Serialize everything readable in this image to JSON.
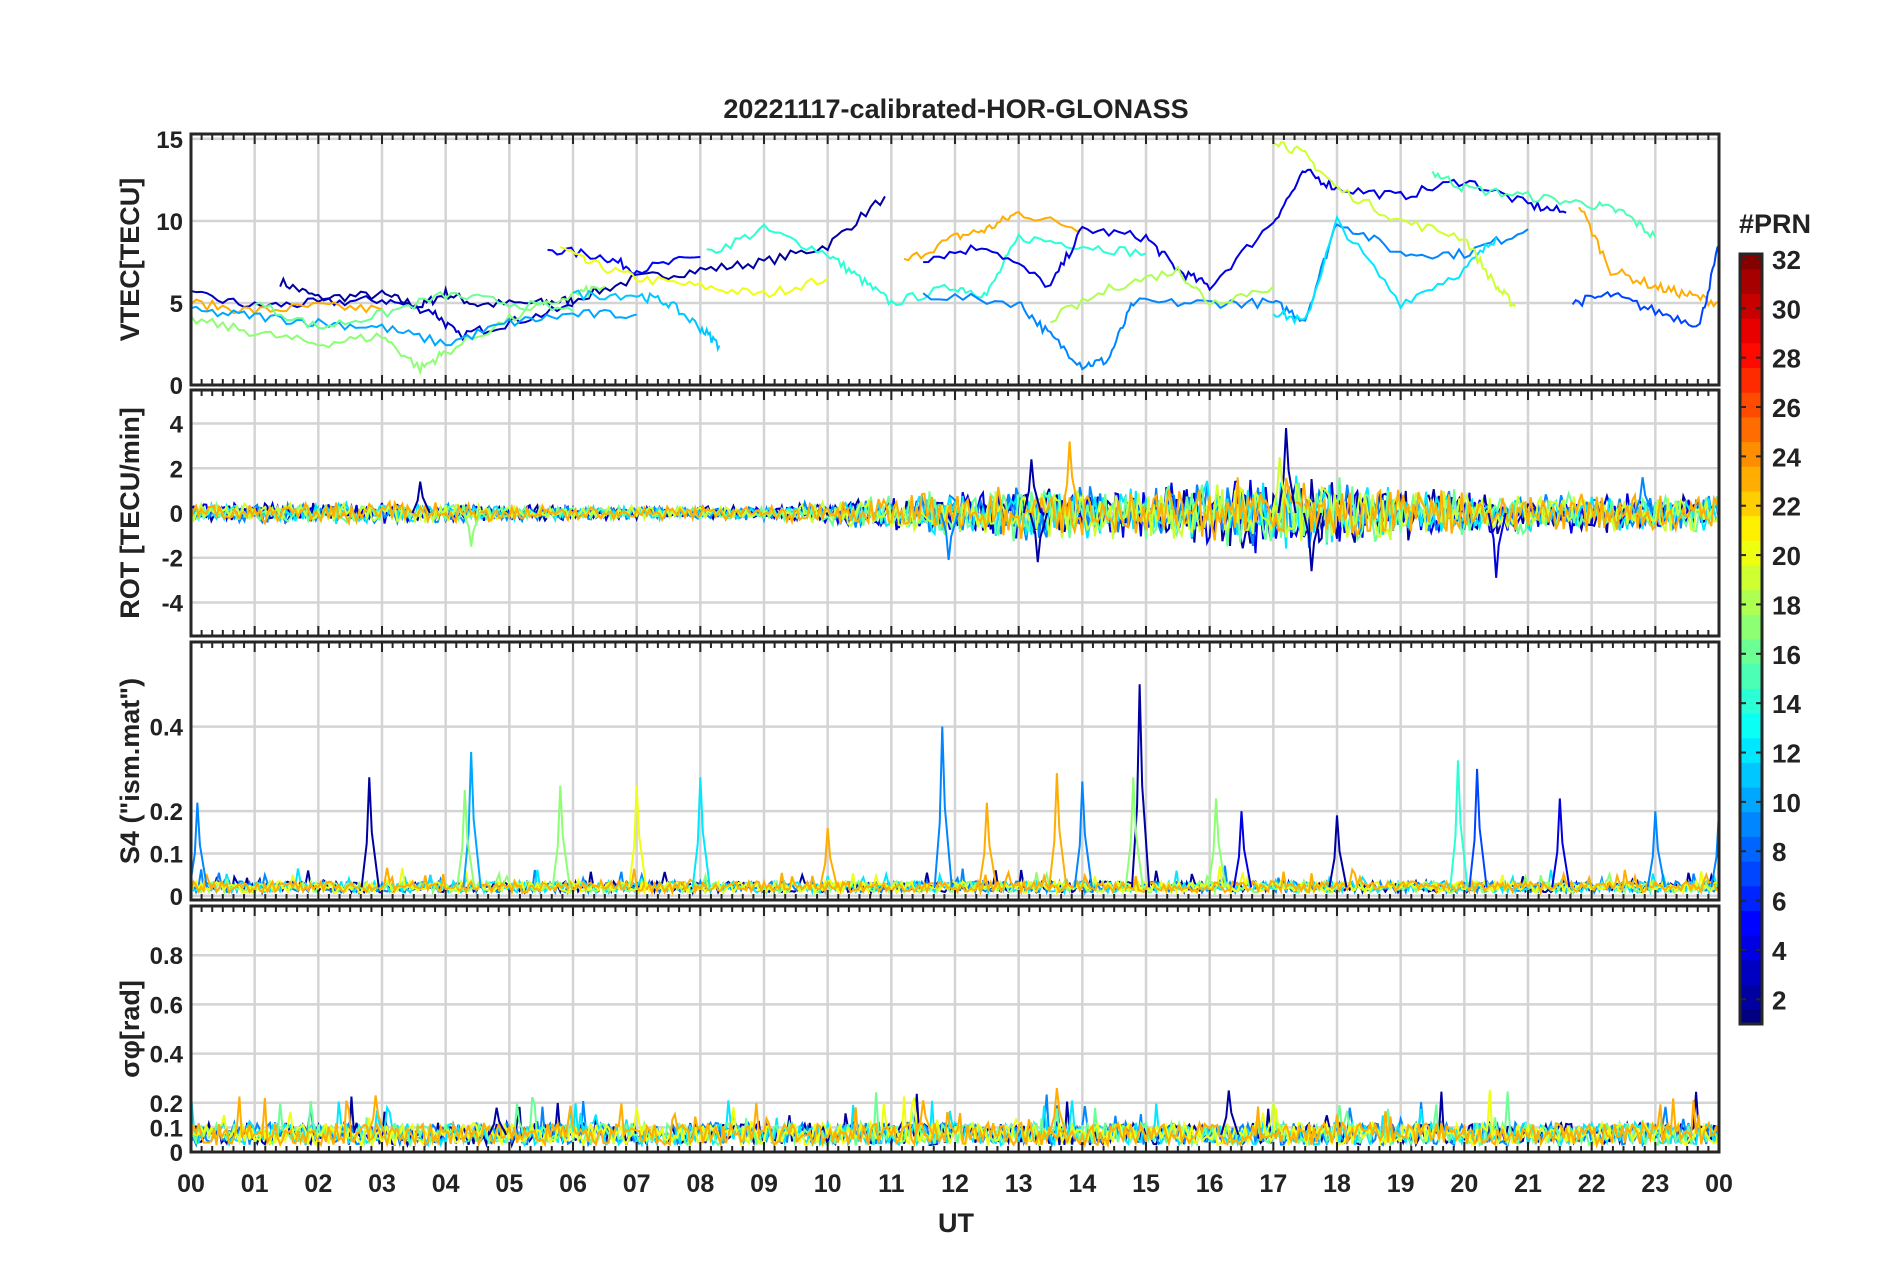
{
  "chart_data": {
    "type": "line",
    "title": "20221117-calibrated-HOR-GLONASS",
    "xlabel": "UT",
    "xlim": [
      0,
      24
    ],
    "xticks": [
      "00",
      "01",
      "02",
      "03",
      "04",
      "05",
      "06",
      "07",
      "08",
      "09",
      "10",
      "11",
      "12",
      "13",
      "14",
      "15",
      "16",
      "17",
      "18",
      "19",
      "20",
      "21",
      "22",
      "23",
      "00"
    ],
    "colorbar": {
      "label": "#PRN",
      "range": [
        1,
        32.2
      ],
      "ticks": [
        2,
        4,
        6,
        8,
        10,
        12,
        14,
        16,
        18,
        20,
        22,
        24,
        26,
        28,
        30,
        32
      ],
      "colormap": "jet"
    },
    "panels": [
      {
        "ylabel": "VTEC[TECU]",
        "ylim": [
          0,
          15.3
        ],
        "yticks": [
          0,
          5,
          10,
          15
        ],
        "yticklabels": [
          "0",
          "5",
          "10",
          "15"
        ],
        "series": [
          {
            "prn": 2,
            "points": [
              [
                1.4,
                6.3
              ],
              [
                2,
                5.3
              ],
              [
                3,
                5.5
              ],
              [
                3.6,
                4.8
              ],
              [
                4,
                5.6
              ],
              [
                4.5,
                4.9
              ],
              [
                5.5,
                5
              ],
              [
                6,
                5.2
              ],
              [
                7,
                6.5
              ],
              [
                8,
                7
              ],
              [
                9,
                7.5
              ],
              [
                10,
                8.5
              ],
              [
                10.9,
                11.5
              ]
            ]
          },
          {
            "prn": 3,
            "points": [
              [
                0,
                5.5
              ],
              [
                1,
                4.8
              ],
              [
                2,
                5
              ],
              [
                3,
                5.2
              ],
              [
                3.8,
                4.5
              ],
              [
                4.2,
                3
              ],
              [
                5,
                3.8
              ],
              [
                6,
                4.8
              ]
            ]
          },
          {
            "prn": 5,
            "points": [
              [
                5.6,
                8.3
              ],
              [
                6.5,
                7.8
              ],
              [
                7,
                7
              ],
              [
                8,
                7.8
              ]
            ]
          },
          {
            "prn": 20,
            "points": [
              [
                5.8,
                8.5
              ],
              [
                6.2,
                7.5
              ],
              [
                7,
                6.5
              ],
              [
                8,
                6
              ],
              [
                9,
                5.5
              ],
              [
                10,
                6.5
              ]
            ]
          },
          {
            "prn": 14,
            "points": [
              [
                8.1,
                8
              ],
              [
                9,
                9.5
              ],
              [
                10,
                8
              ],
              [
                10.5,
                6.5
              ],
              [
                11,
                5
              ],
              [
                12,
                6
              ],
              [
                12.5,
                5.5
              ],
              [
                13,
                9
              ],
              [
                14,
                8.5
              ],
              [
                15,
                8
              ]
            ]
          },
          {
            "prn": 23,
            "points": [
              [
                0,
                5
              ],
              [
                1,
                4.5
              ],
              [
                2,
                4.8
              ],
              [
                3,
                4.6
              ]
            ]
          },
          {
            "prn": 23,
            "points": [
              [
                11.2,
                7.5
              ],
              [
                12,
                9
              ],
              [
                12.5,
                9.5
              ],
              [
                13,
                10.5
              ],
              [
                14,
                9.5
              ]
            ]
          },
          {
            "prn": 4,
            "points": [
              [
                11.5,
                7.7
              ],
              [
                12.5,
                8.5
              ],
              [
                13.5,
                6
              ],
              [
                14,
                9.5
              ],
              [
                15,
                9
              ],
              [
                15.5,
                7
              ],
              [
                16,
                6
              ],
              [
                17,
                10
              ],
              [
                17.5,
                13
              ],
              [
                18,
                12
              ],
              [
                19,
                11.5
              ],
              [
                20,
                12.5
              ],
              [
                21,
                11
              ],
              [
                21.6,
                10.5
              ]
            ]
          },
          {
            "prn": 9,
            "points": [
              [
                11.5,
                5.5
              ],
              [
                13,
                5
              ],
              [
                13.5,
                3
              ],
              [
                14,
                1.2
              ],
              [
                14.4,
                1.5
              ],
              [
                14.8,
                5
              ],
              [
                16,
                5
              ],
              [
                17,
                5
              ],
              [
                17.5,
                4
              ],
              [
                18,
                10
              ],
              [
                19,
                8
              ],
              [
                20,
                8
              ],
              [
                21,
                9.5
              ]
            ]
          },
          {
            "prn": 12,
            "points": [
              [
                17,
                4.5
              ],
              [
                17.5,
                3.8
              ],
              [
                18,
                10
              ],
              [
                19,
                5
              ],
              [
                20,
                7
              ],
              [
                20.5,
                9
              ]
            ]
          },
          {
            "prn": 19,
            "points": [
              [
                17,
                15
              ],
              [
                17.5,
                14
              ],
              [
                18,
                12
              ],
              [
                19,
                10
              ],
              [
                20,
                9
              ],
              [
                20.5,
                6
              ],
              [
                20.8,
                4.8
              ]
            ]
          },
          {
            "prn": 15,
            "points": [
              [
                19.5,
                13
              ],
              [
                20,
                12
              ],
              [
                21,
                11.5
              ],
              [
                22,
                11
              ],
              [
                22.5,
                10.5
              ],
              [
                23,
                9
              ]
            ]
          },
          {
            "prn": 23,
            "points": [
              [
                21.8,
                11
              ],
              [
                22.3,
                7
              ],
              [
                23,
                6
              ],
              [
                23.5,
                5.5
              ],
              [
                24,
                5
              ]
            ]
          },
          {
            "prn": 7,
            "points": [
              [
                21.7,
                5
              ],
              [
                22.3,
                5.5
              ],
              [
                23,
                4.5
              ],
              [
                23.7,
                3.7
              ],
              [
                24,
                8.5
              ]
            ]
          },
          {
            "prn": 17,
            "points": [
              [
                0,
                4
              ],
              [
                1,
                3.2
              ],
              [
                2,
                2.5
              ],
              [
                3,
                3
              ],
              [
                3.6,
                1
              ],
              [
                4,
                2
              ],
              [
                5,
                4
              ],
              [
                6,
                5.5
              ],
              [
                6.5,
                6
              ]
            ]
          },
          {
            "prn": 10,
            "points": [
              [
                0,
                4.5
              ],
              [
                1,
                4.2
              ],
              [
                2,
                3.8
              ],
              [
                3,
                3.5
              ],
              [
                4,
                2.5
              ],
              [
                5,
                3.8
              ],
              [
                6,
                4.3
              ],
              [
                7,
                4.3
              ]
            ]
          },
          {
            "prn": 11,
            "points": [
              [
                6,
                5.5
              ],
              [
                7,
                5.5
              ],
              [
                7.5,
                5
              ],
              [
                8,
                3.5
              ],
              [
                8.3,
                2.4
              ]
            ]
          },
          {
            "prn": 16,
            "points": [
              [
                1,
                5
              ],
              [
                2,
                3.5
              ],
              [
                3,
                4.3
              ],
              [
                4,
                5.5
              ],
              [
                5,
                5
              ],
              [
                6,
                4.5
              ]
            ]
          },
          {
            "prn": 18,
            "points": [
              [
                13.5,
                4
              ],
              [
                14.5,
                6
              ],
              [
                15.5,
                7
              ],
              [
                16,
                5
              ],
              [
                17,
                6
              ]
            ]
          }
        ]
      },
      {
        "ylabel": "ROT [TECU/min]",
        "ylim": [
          -5.5,
          5.5
        ],
        "yticks": [
          -4,
          -2,
          0,
          2,
          4
        ],
        "yticklabels": [
          "-4",
          "-2",
          "0",
          "2",
          "4"
        ],
        "noise_prns": [
          2,
          4,
          9,
          12,
          16,
          19,
          23
        ],
        "activity": [
          [
            0,
            0.4
          ],
          [
            3,
            0.5
          ],
          [
            6,
            0.3
          ],
          [
            9,
            0.3
          ],
          [
            11,
            0.8
          ],
          [
            13,
            1.2
          ],
          [
            15,
            1.2
          ],
          [
            17,
            1.8
          ],
          [
            19,
            1.2
          ],
          [
            21,
            0.9
          ],
          [
            24,
            0.8
          ]
        ],
        "spikes": [
          [
            3.6,
            1.4,
            2
          ],
          [
            4.4,
            -1.5,
            17
          ],
          [
            11.9,
            -2.1,
            9
          ],
          [
            13.2,
            2.4,
            2
          ],
          [
            13.3,
            -2.2,
            2
          ],
          [
            13.8,
            3.2,
            23
          ],
          [
            17.2,
            3.8,
            2
          ],
          [
            17.1,
            2.5,
            19
          ],
          [
            17.6,
            -2.6,
            2
          ],
          [
            20.5,
            -2.9,
            4
          ],
          [
            22.8,
            1.6,
            9
          ]
        ]
      },
      {
        "ylabel": "S4 (\"ism.mat\")",
        "ylim": [
          -0.01,
          0.6
        ],
        "yticks": [
          0,
          0.1,
          0.2,
          0.4
        ],
        "yticklabels": [
          "0",
          "0.1",
          "0.2",
          "0.4"
        ],
        "noise_prns": [
          2,
          9,
          12,
          17,
          20,
          23
        ],
        "baseline": 0.02,
        "spikes": [
          [
            0.1,
            0.22,
            9
          ],
          [
            2.8,
            0.28,
            2
          ],
          [
            4.4,
            0.34,
            10
          ],
          [
            4.3,
            0.25,
            17
          ],
          [
            5.8,
            0.26,
            17
          ],
          [
            7.0,
            0.26,
            20
          ],
          [
            8.0,
            0.28,
            12
          ],
          [
            10.0,
            0.16,
            23
          ],
          [
            11.8,
            0.4,
            9
          ],
          [
            12.5,
            0.22,
            23
          ],
          [
            13.6,
            0.29,
            23
          ],
          [
            14.0,
            0.27,
            9
          ],
          [
            14.9,
            0.5,
            2
          ],
          [
            14.8,
            0.28,
            17
          ],
          [
            16.1,
            0.23,
            17
          ],
          [
            16.5,
            0.2,
            4
          ],
          [
            18.0,
            0.19,
            2
          ],
          [
            19.9,
            0.32,
            14
          ],
          [
            20.2,
            0.3,
            7
          ],
          [
            21.5,
            0.23,
            4
          ],
          [
            23.0,
            0.2,
            9
          ],
          [
            24,
            0.2,
            9
          ]
        ]
      },
      {
        "ylabel": "σφ[rad]",
        "ylim": [
          0,
          1
        ],
        "yticks": [
          0,
          0.1,
          0.2,
          0.4,
          0.6,
          0.8
        ],
        "yticklabels": [
          "0",
          "0.1",
          "0.2",
          "0.4",
          "0.6",
          "0.8"
        ],
        "noise_prns": [
          2,
          9,
          12,
          16,
          20,
          23
        ],
        "baseline": 0.07,
        "spikes": [
          [
            2.9,
            0.23,
            23
          ],
          [
            4.8,
            0.18,
            2
          ],
          [
            11.5,
            0.21,
            23
          ],
          [
            13.6,
            0.26,
            23
          ],
          [
            16.3,
            0.25,
            2
          ],
          [
            17.0,
            0.2,
            19
          ]
        ]
      }
    ]
  }
}
